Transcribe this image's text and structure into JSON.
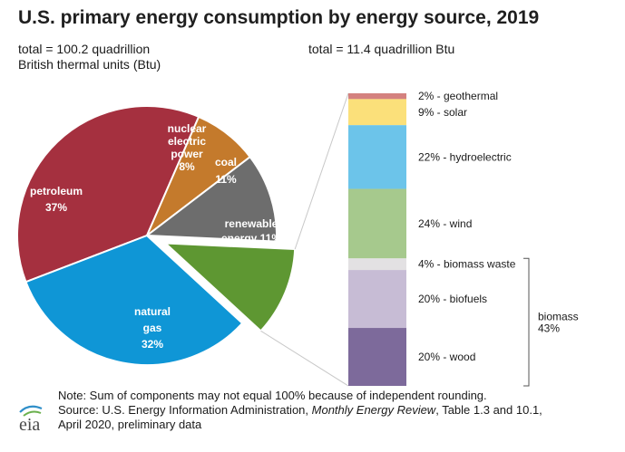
{
  "title": "U.S. primary energy consumption by energy source, 2019",
  "total_left_line1": "total = 100.2 quadrillion",
  "total_left_line2": "British thermal units (Btu)",
  "total_right": "total = 11.4 quadrillion Btu",
  "note": "Note: Sum of components may not equal 100% because of independent rounding.",
  "source_prefix": "Source: U.S. Energy Information Administration, ",
  "source_italic": "Monthly Energy Review",
  "source_suffix": ", Table 1.3 and 10.1,",
  "source_line2": "April 2020, preliminary data",
  "logo_text": "eia",
  "chart_data": [
    {
      "type": "pie",
      "slices": [
        {
          "label_lines": [
            "petroleum",
            "37%"
          ],
          "value": 37,
          "color": "#a5303f"
        },
        {
          "label_lines": [
            "nuclear",
            "electric",
            "power",
            "8%"
          ],
          "value": 8,
          "color": "#c47a2c"
        },
        {
          "label_lines": [
            "coal",
            "11%"
          ],
          "value": 11,
          "color": "#6d6d6d"
        },
        {
          "label_lines": [
            "renewable",
            "energy 11%"
          ],
          "value": 11,
          "color": "#5e9732",
          "exploded": true
        },
        {
          "label_lines": [
            "natural",
            "gas",
            "32%"
          ],
          "value": 32,
          "color": "#0f96d6"
        }
      ]
    },
    {
      "type": "bar",
      "stacked": true,
      "segments": [
        {
          "label": "2% - geothermal",
          "value": 2,
          "color": "#d4817f"
        },
        {
          "label": "9% - solar",
          "value": 9,
          "color": "#fbe07a"
        },
        {
          "label": "22% - hydroelectric",
          "value": 22,
          "color": "#6cc4ea"
        },
        {
          "label": "24% - wind",
          "value": 24,
          "color": "#a6c98d"
        },
        {
          "label": "4% - biomass waste",
          "value": 4,
          "color": "#e3e1e3"
        },
        {
          "label": "20% - biofuels",
          "value": 20,
          "color": "#c7bcd5"
        },
        {
          "label": "20% - wood",
          "value": 20,
          "color": "#7d6a9b"
        }
      ],
      "group_label_lines": [
        "biomass",
        "43%"
      ]
    }
  ]
}
